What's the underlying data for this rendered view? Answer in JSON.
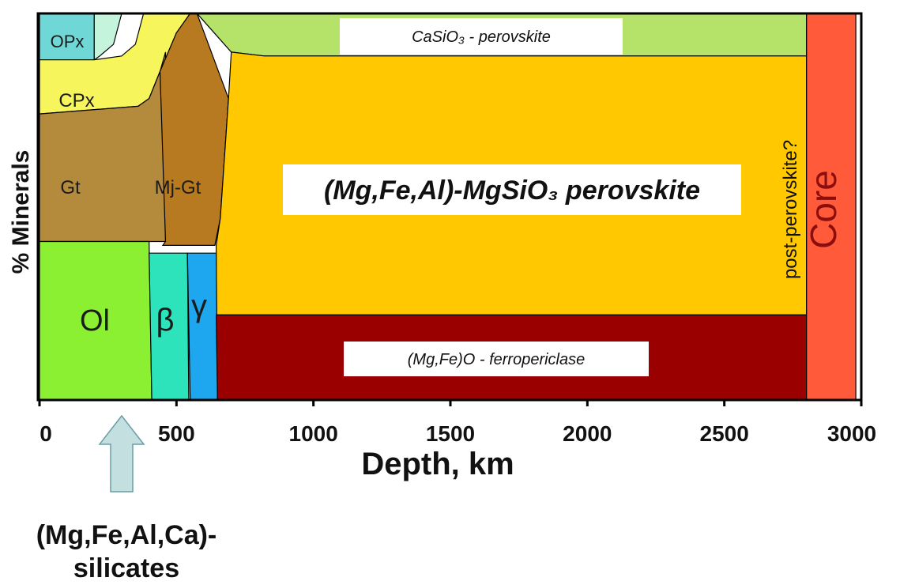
{
  "chart_data": {
    "type": "area",
    "xlabel": "Depth, km",
    "ylabel": "% Minerals",
    "xlim": [
      0,
      3000
    ],
    "x_ticks": [
      "0",
      "500",
      "1000",
      "1500",
      "2000",
      "2500",
      "3000"
    ],
    "x_tick_values": [
      0,
      500,
      1000,
      1500,
      2000,
      2500,
      3000
    ],
    "ylim": [
      0,
      100
    ],
    "regions": [
      {
        "label": "OPx",
        "color": "#6fd8d6",
        "polygon": [
          [
            0,
            100
          ],
          [
            200,
            100
          ],
          [
            200,
            88
          ],
          [
            0,
            88
          ]
        ]
      },
      {
        "label": "",
        "color": "#c4f4dc",
        "polygon": [
          [
            200,
            100
          ],
          [
            300,
            100
          ],
          [
            270,
            92
          ],
          [
            220,
            89
          ],
          [
            200,
            88
          ]
        ]
      },
      {
        "label": "CPx",
        "color": "#f7f55c",
        "polygon": [
          [
            0,
            88
          ],
          [
            200,
            88
          ],
          [
            300,
            89
          ],
          [
            350,
            92
          ],
          [
            380,
            100
          ],
          [
            550,
            100
          ],
          [
            500,
            95
          ],
          [
            440,
            85
          ],
          [
            400,
            78
          ],
          [
            360,
            76
          ],
          [
            0,
            74
          ]
        ]
      },
      {
        "label": "Gt",
        "color": "#b48a3c",
        "polygon": [
          [
            0,
            74
          ],
          [
            360,
            76
          ],
          [
            400,
            78
          ],
          [
            440,
            85
          ],
          [
            460,
            90
          ],
          [
            460,
            41
          ],
          [
            0,
            41
          ]
        ]
      },
      {
        "label": "Mj-Gt",
        "color": "#b87a20",
        "polygon": [
          [
            440,
            85
          ],
          [
            500,
            95
          ],
          [
            550,
            100
          ],
          [
            575,
            100
          ],
          [
            690,
            78
          ],
          [
            660,
            47
          ],
          [
            640,
            40
          ],
          [
            450,
            40
          ],
          [
            460,
            41
          ]
        ]
      },
      {
        "label": "CaSiO₃ - perovskite",
        "color": "#b5e36a",
        "polygon": [
          [
            575,
            100
          ],
          [
            2800,
            100
          ],
          [
            2800,
            89
          ],
          [
            820,
            89
          ],
          [
            700,
            90
          ]
        ]
      },
      {
        "label": "(Mg,Fe,Al)-MgSiO₃ perovskite",
        "color": "#ffc800",
        "polygon": [
          [
            700,
            90
          ],
          [
            820,
            89
          ],
          [
            2800,
            89
          ],
          [
            2800,
            22
          ],
          [
            645,
            22
          ],
          [
            645,
            40
          ],
          [
            660,
            47
          ],
          [
            690,
            78
          ]
        ]
      },
      {
        "label": "Ol",
        "color": "#8af031",
        "polygon": [
          [
            0,
            41
          ],
          [
            400,
            41
          ],
          [
            410,
            0
          ],
          [
            0,
            0
          ]
        ]
      },
      {
        "label": "β",
        "color": "#2de3bb",
        "polygon": [
          [
            400,
            38
          ],
          [
            540,
            38
          ],
          [
            545,
            0
          ],
          [
            410,
            0
          ]
        ]
      },
      {
        "label": "γ",
        "color": "#1ea6ee",
        "polygon": [
          [
            540,
            38
          ],
          [
            645,
            38
          ],
          [
            650,
            0
          ],
          [
            550,
            0
          ]
        ]
      },
      {
        "label": "(Mg,Fe)O - ferropericlase",
        "color": "#9a0000",
        "polygon": [
          [
            645,
            22
          ],
          [
            2800,
            22
          ],
          [
            2800,
            0
          ],
          [
            650,
            0
          ]
        ]
      },
      {
        "label": "Core",
        "color": "#ff5a3a",
        "polygon": [
          [
            2800,
            100
          ],
          [
            2980,
            100
          ],
          [
            2980,
            0
          ],
          [
            2800,
            0
          ]
        ]
      }
    ],
    "vertical_label": "post-perovskite?",
    "annotation": "(Mg,Fe,Al,Ca)-silicates",
    "annotation_arrow_x": 300
  }
}
